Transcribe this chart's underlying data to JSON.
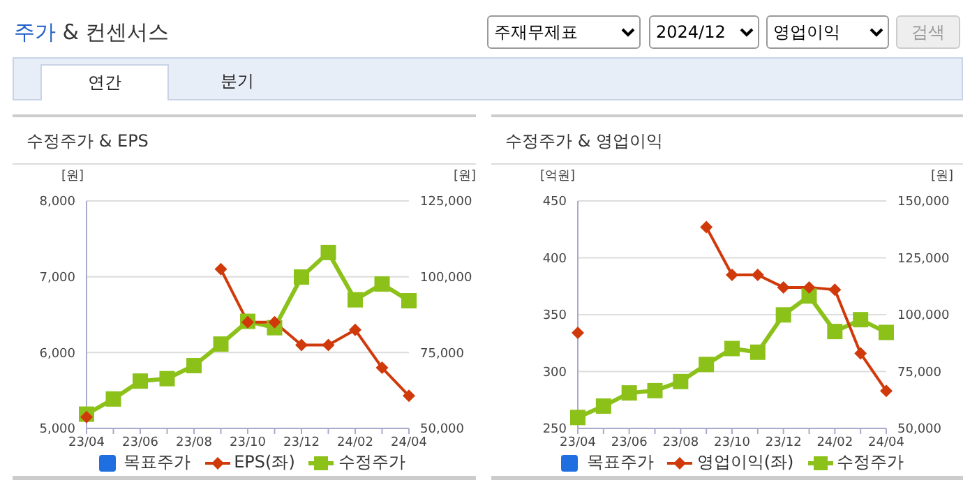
{
  "chart_data": [
    {
      "type": "other",
      "title": "주가 & 컨센서스",
      "annotations": [
        "주재무제표",
        "2024/12",
        "영업이익",
        "검색",
        "연간",
        "분기"
      ]
    },
    {
      "type": "line",
      "title": "수정주가 & EPS",
      "ylabel": "[원]",
      "y2label": "[원]",
      "categories": [
        "23/04",
        null,
        "23/06",
        null,
        "23/08",
        null,
        "23/10",
        null,
        "23/12",
        null,
        "24/02",
        null,
        "24/04"
      ],
      "series": [
        {
          "name": "목표주가",
          "color": "#1f6fe0",
          "marker": "square",
          "values": [
            null,
            null,
            null,
            null,
            null,
            null,
            null,
            null,
            null,
            null,
            null,
            null,
            null
          ]
        },
        {
          "name": "EPS(좌)",
          "color": "#d03a0b",
          "marker": "diamond",
          "values": [
            5150,
            null,
            null,
            null,
            null,
            7100,
            6400,
            6400,
            6100,
            6100,
            6300,
            5800,
            5430
          ]
        },
        {
          "name": "수정주가",
          "color": "#8cc11a",
          "marker": "square",
          "axis": "y2",
          "values": [
            54700,
            59700,
            65600,
            66400,
            70700,
            77800,
            85300,
            83200,
            99900,
            108000,
            92400,
            97600,
            92100
          ]
        }
      ],
      "ylim": [
        5000,
        8000
      ],
      "yticks": [
        {
          "value": 5000,
          "label": "5,000"
        },
        {
          "value": 6000,
          "label": "6,000"
        },
        {
          "value": 7000,
          "label": "7,000"
        },
        {
          "value": 8000,
          "label": "8,000"
        }
      ],
      "y2lim": [
        50000,
        125000
      ],
      "y2ticks": [
        {
          "value": 50000,
          "label": "50,000"
        },
        {
          "value": 75000,
          "label": "75,000"
        },
        {
          "value": 100000,
          "label": "100,000"
        },
        {
          "value": 125000,
          "label": "125,000"
        }
      ],
      "grid": "y",
      "legend": "bottom"
    },
    {
      "type": "line",
      "title": "수정주가 & 영업이익",
      "ylabel": "[억원]",
      "y2label": "[원]",
      "categories": [
        "23/04",
        null,
        "23/06",
        null,
        "23/08",
        null,
        "23/10",
        null,
        "23/12",
        null,
        "24/02",
        null,
        "24/04"
      ],
      "series": [
        {
          "name": "목표주가",
          "color": "#1f6fe0",
          "marker": "square",
          "values": [
            null,
            null,
            null,
            null,
            null,
            null,
            null,
            null,
            null,
            null,
            null,
            null,
            null
          ]
        },
        {
          "name": "영업이익(좌)",
          "color": "#d03a0b",
          "marker": "diamond",
          "values": [
            334,
            null,
            null,
            null,
            null,
            427,
            385,
            385,
            374,
            374,
            372,
            316,
            283
          ]
        },
        {
          "name": "수정주가",
          "color": "#8cc11a",
          "marker": "square",
          "axis": "y2",
          "values": [
            54800,
            59800,
            65600,
            66600,
            70600,
            78100,
            85100,
            83500,
            99900,
            108200,
            92600,
            97800,
            92200
          ]
        }
      ],
      "ylim": [
        250,
        450
      ],
      "yticks": [
        250,
        300,
        350,
        400,
        450
      ],
      "y2lim": [
        50000,
        150000
      ],
      "y2ticks": [
        {
          "value": 50000,
          "label": "50,000"
        },
        {
          "value": 75000,
          "label": "75,000"
        },
        {
          "value": 100000,
          "label": "100,000"
        },
        {
          "value": 125000,
          "label": "125,000"
        },
        {
          "value": 150000,
          "label": "150,000"
        }
      ],
      "grid": "y",
      "legend": "bottom"
    }
  ]
}
